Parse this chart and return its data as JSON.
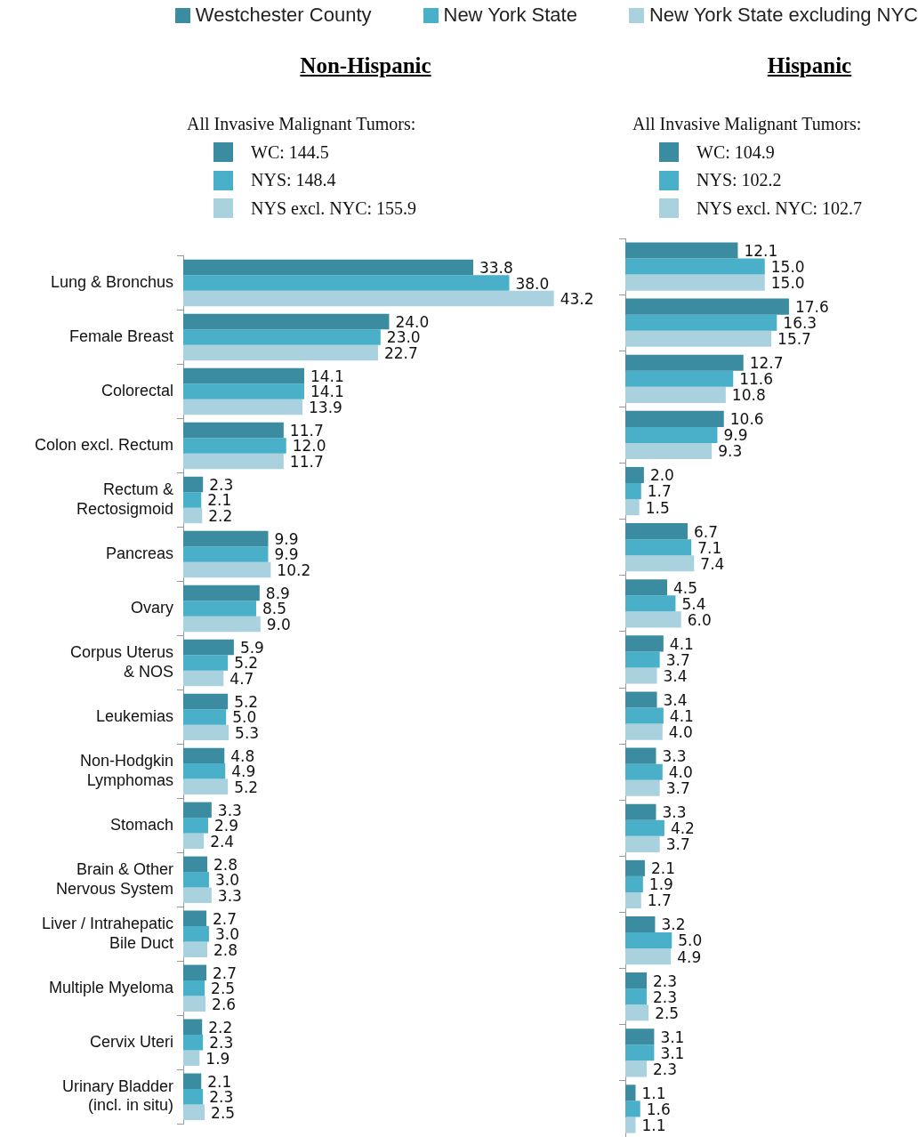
{
  "chart_data": [
    {
      "type": "bar",
      "orientation": "horizontal",
      "title": "Non-Hispanic",
      "legend": "top",
      "annotations": [
        "All Invasive Malignant Tumors:",
        "WC:  144.5",
        "NYS:  148.4",
        "NYS excl. NYC:  155.9"
      ],
      "categories": [
        "Lung & Bronchus",
        "Female Breast",
        "Colorectal",
        "Colon excl. Rectum",
        "Rectum &\nRectosigmoid",
        "Pancreas",
        "Ovary",
        "Corpus Uterus\n& NOS",
        "Leukemias",
        "Non-Hodgkin\nLymphomas",
        "Stomach",
        "Brain & Other\nNervous System",
        "Liver / Intrahepatic\nBile Duct",
        "Multiple Myeloma",
        "Cervix Uteri",
        "Urinary Bladder\n(incl. in situ)"
      ],
      "series": [
        {
          "name": "Westchester County",
          "color": "#3b8ba1",
          "values": [
            33.8,
            24.0,
            14.1,
            11.7,
            2.3,
            9.9,
            8.9,
            5.9,
            5.2,
            4.8,
            3.3,
            2.8,
            2.7,
            2.7,
            2.2,
            2.1
          ],
          "value_labels": [
            "33.8",
            "24.0",
            "14.1",
            "11.7",
            "2.3",
            "9.9",
            "8.9",
            "5.9",
            "5.2",
            "4.8",
            "3.3",
            "2.8",
            "2.7",
            "2.7",
            "2.2",
            "2.1"
          ]
        },
        {
          "name": "New York State",
          "color": "#4aafc8",
          "values": [
            38.0,
            23.0,
            14.1,
            12.0,
            2.1,
            9.9,
            8.5,
            5.2,
            5.0,
            4.9,
            2.9,
            3.0,
            3.0,
            2.5,
            2.3,
            2.3
          ],
          "value_labels": [
            "38.0",
            "23.0",
            "14.1",
            "12.0",
            "2.1",
            "9.9",
            "8.5",
            "5.2",
            "5.0",
            "4.9",
            "2.9",
            "3.0",
            "3.0",
            "2.5",
            "2.3",
            "2.3"
          ]
        },
        {
          "name": "New York State excluding NYC",
          "color": "#a9d1de",
          "values": [
            43.2,
            22.7,
            13.9,
            11.7,
            2.2,
            10.2,
            9.0,
            4.7,
            5.3,
            5.2,
            2.4,
            3.3,
            2.8,
            2.6,
            1.9,
            2.5
          ],
          "value_labels": [
            "43.2",
            "22.7",
            "13.9",
            "11.7",
            "2.2",
            "10.2",
            "9.0",
            "4.7",
            "5.3",
            "5.2",
            "2.4",
            "3.3",
            "2.8",
            "2.6",
            "1.9",
            "2.5"
          ]
        }
      ]
    },
    {
      "type": "bar",
      "orientation": "horizontal",
      "title": "Hispanic",
      "tick_labels": false,
      "annotations": [
        "All Invasive Malignant Tumors:",
        "WC:  104.9",
        "NYS:  102.2",
        "NYS excl. NYC:  102.7"
      ],
      "categories": [
        null,
        null,
        null,
        null,
        null,
        null,
        null,
        null,
        null,
        null,
        null,
        null,
        null,
        null,
        null,
        null
      ],
      "series": [
        {
          "color": "#3b8ba1",
          "values": [
            12.1,
            17.6,
            12.7,
            10.6,
            2.0,
            6.7,
            4.5,
            4.1,
            3.4,
            3.3,
            3.3,
            2.1,
            3.2,
            2.3,
            3.1,
            1.1
          ],
          "value_labels": [
            "12.1",
            "17.6",
            "12.7",
            "10.6",
            "2.0",
            "6.7",
            "4.5",
            "4.1",
            "3.4",
            "3.3",
            "3.3",
            "2.1",
            "3.2",
            "2.3",
            "3.1",
            "1.1"
          ]
        },
        {
          "color": "#4aafc8",
          "values": [
            15.0,
            16.3,
            11.6,
            9.9,
            1.7,
            7.1,
            5.4,
            3.7,
            4.1,
            4.0,
            4.2,
            1.9,
            5.0,
            2.3,
            3.1,
            1.6
          ],
          "value_labels": [
            "15.0",
            "16.3",
            "11.6",
            "9.9",
            "1.7",
            "7.1",
            "5.4",
            "3.7",
            "4.1",
            "4.0",
            "4.2",
            "1.9",
            "5.0",
            "2.3",
            "3.1",
            "1.6"
          ]
        },
        {
          "color": "#a9d1de",
          "values": [
            15.0,
            15.7,
            10.8,
            9.3,
            1.5,
            7.4,
            6.0,
            3.4,
            4.0,
            3.7,
            3.7,
            1.7,
            4.9,
            2.5,
            2.3,
            1.1
          ],
          "value_labels": [
            "15.0",
            "15.7",
            "10.8",
            "9.3",
            "1.5",
            "7.4",
            "6.0",
            "3.4",
            "4.0",
            "3.7",
            "3.7",
            "1.7",
            "4.9",
            "2.5",
            "2.3",
            "1.1"
          ]
        }
      ]
    }
  ]
}
